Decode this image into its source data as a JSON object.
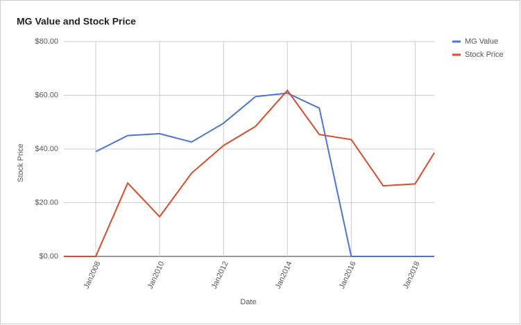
{
  "chart_data": {
    "type": "line",
    "title": "MG Value and Stock Price",
    "x_label": "Date",
    "y_label": "Stock Price",
    "x": [
      2007,
      2008,
      2009,
      2010,
      2011,
      2012,
      2013,
      2014,
      2015,
      2016,
      2017,
      2018,
      2018.6
    ],
    "series": [
      {
        "name": "MG Value",
        "color": "#4a72d8",
        "values": [
          null,
          39,
          45,
          45.7,
          42.6,
          49.6,
          59.5,
          60.8,
          55.2,
          0,
          0,
          0,
          0
        ]
      },
      {
        "name": "Stock Price",
        "color": "#dc4a28",
        "values": [
          0,
          0,
          27.3,
          14.8,
          31,
          41.3,
          48.4,
          61.8,
          45.4,
          43.5,
          26.3,
          27,
          38.6
        ]
      }
    ],
    "xlim": [
      2007,
      2018.6
    ],
    "xticks": [
      {
        "value": 2008,
        "label": "Jan2008"
      },
      {
        "value": 2010,
        "label": "Jan2010"
      },
      {
        "value": 2012,
        "label": "Jan2012"
      },
      {
        "value": 2014,
        "label": "Jan2014"
      },
      {
        "value": 2016,
        "label": "Jan2016"
      },
      {
        "value": 2018,
        "label": "Jan2018"
      }
    ],
    "ylim": [
      0,
      80
    ],
    "yticks": [
      {
        "value": 0,
        "label": "$0.00"
      },
      {
        "value": 20,
        "label": "$20.00"
      },
      {
        "value": 40,
        "label": "$40.00"
      },
      {
        "value": 60,
        "label": "$60.00"
      },
      {
        "value": 80,
        "label": "$80.00"
      }
    ],
    "grid": true,
    "legend": "right"
  }
}
